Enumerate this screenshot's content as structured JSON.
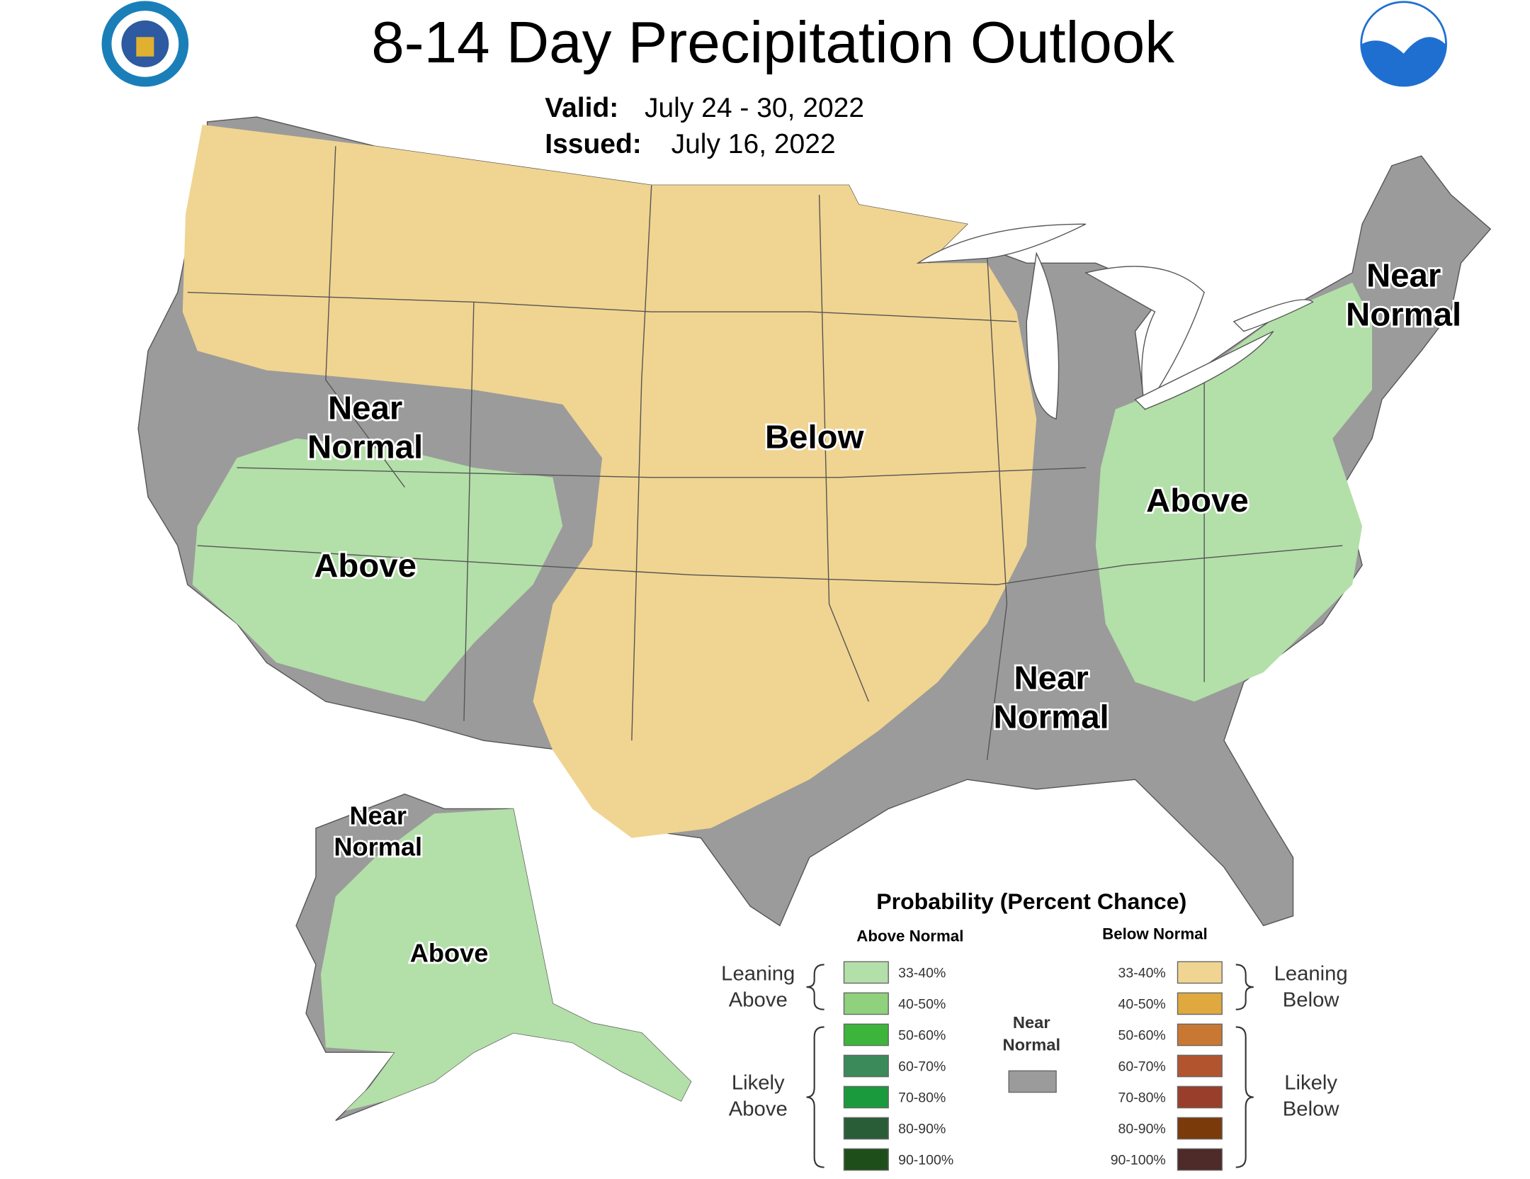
{
  "header": {
    "title": "8-14 Day Precipitation Outlook",
    "valid_label": "Valid:",
    "valid": "July 24 - 30, 2022",
    "issued_label": "Issued:",
    "issued": "July 16, 2022"
  },
  "regions": [
    {
      "lines": [
        "Near",
        "Normal"
      ]
    },
    {
      "lines": [
        "Above"
      ]
    },
    {
      "lines": [
        "Below"
      ]
    },
    {
      "lines": [
        "Near",
        "Normal"
      ]
    },
    {
      "lines": [
        "Above"
      ]
    },
    {
      "lines": [
        "Near",
        "Normal"
      ]
    },
    {
      "lines": [
        "Near",
        "Normal"
      ]
    },
    {
      "lines": [
        "Above"
      ]
    }
  ],
  "legend": {
    "title": "Probability (Percent Chance)",
    "above_header": "Above Normal",
    "below_header": "Below Normal",
    "above_bins": [
      {
        "label": "33-40%",
        "color": "#b3dfa9"
      },
      {
        "label": "40-50%",
        "color": "#8fd17d"
      },
      {
        "label": "50-60%",
        "color": "#3db53a"
      },
      {
        "label": "60-70%",
        "color": "#3a8a5a"
      },
      {
        "label": "70-80%",
        "color": "#1a9a3c"
      },
      {
        "label": "80-90%",
        "color": "#285d38"
      },
      {
        "label": "90-100%",
        "color": "#1e4f1a"
      }
    ],
    "below_bins": [
      {
        "label": "33-40%",
        "color": "#f0d491"
      },
      {
        "label": "40-50%",
        "color": "#e0a93f"
      },
      {
        "label": "50-60%",
        "color": "#c97833"
      },
      {
        "label": "60-70%",
        "color": "#b2552f"
      },
      {
        "label": "70-80%",
        "color": "#9a3e2c"
      },
      {
        "label": "80-90%",
        "color": "#7a3a0a"
      },
      {
        "label": "90-100%",
        "color": "#4e2a28"
      }
    ],
    "near_normal": {
      "lines": [
        "Near",
        "Normal"
      ],
      "color": "#9b9b9b"
    },
    "leaning_above": [
      "Leaning",
      "Above"
    ],
    "likely_above": [
      "Likely",
      "Above"
    ],
    "leaning_below": [
      "Leaning",
      "Below"
    ],
    "likely_below": [
      "Likely",
      "Below"
    ]
  }
}
